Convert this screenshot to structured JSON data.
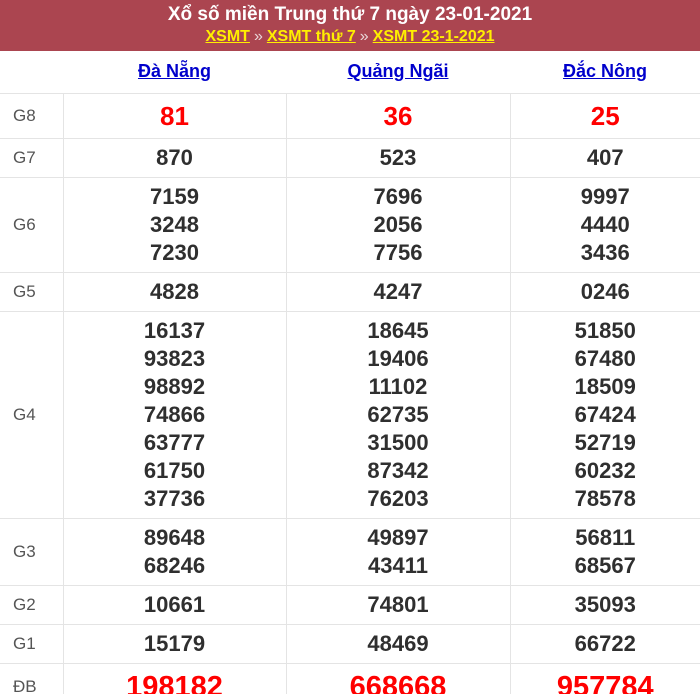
{
  "header": {
    "title": "Xổ số miền Trung thứ 7 ngày 23-01-2021",
    "separator": "»",
    "breadcrumb": [
      {
        "label": "XSMT"
      },
      {
        "label": "XSMT thứ 7"
      },
      {
        "label": "XSMT 23-1-2021"
      }
    ]
  },
  "table": {
    "provinces": [
      "Đà Nẵng",
      "Quảng Ngãi",
      "Đắc Nông"
    ],
    "rows": [
      {
        "label": "G8",
        "style": "red-large",
        "values": [
          [
            "81"
          ],
          [
            "36"
          ],
          [
            "25"
          ]
        ]
      },
      {
        "label": "G7",
        "values": [
          [
            "870"
          ],
          [
            "523"
          ],
          [
            "407"
          ]
        ]
      },
      {
        "label": "G6",
        "values": [
          [
            "7159",
            "3248",
            "7230"
          ],
          [
            "7696",
            "2056",
            "7756"
          ],
          [
            "9997",
            "4440",
            "3436"
          ]
        ]
      },
      {
        "label": "G5",
        "values": [
          [
            "4828"
          ],
          [
            "4247"
          ],
          [
            "0246"
          ]
        ]
      },
      {
        "label": "G4",
        "values": [
          [
            "16137",
            "93823",
            "98892",
            "74866",
            "63777",
            "61750",
            "37736"
          ],
          [
            "18645",
            "19406",
            "11102",
            "62735",
            "31500",
            "87342",
            "76203"
          ],
          [
            "51850",
            "67480",
            "18509",
            "67424",
            "52719",
            "60232",
            "78578"
          ]
        ]
      },
      {
        "label": "G3",
        "values": [
          [
            "89648",
            "68246"
          ],
          [
            "49897",
            "43411"
          ],
          [
            "56811",
            "68567"
          ]
        ]
      },
      {
        "label": "G2",
        "values": [
          [
            "10661"
          ],
          [
            "74801"
          ],
          [
            "35093"
          ]
        ]
      },
      {
        "label": "G1",
        "values": [
          [
            "15179"
          ],
          [
            "48469"
          ],
          [
            "66722"
          ]
        ]
      },
      {
        "label": "ĐB",
        "style": "red-xlarge",
        "values": [
          [
            "198182"
          ],
          [
            "668668"
          ],
          [
            "957784"
          ]
        ]
      }
    ]
  },
  "colors": {
    "banner_bg": "#ab4550",
    "banner_title": "#ffffff",
    "breadcrumb_link": "#ffef00",
    "breadcrumb_separator": "#e9d7d9",
    "province_link": "#0000cc",
    "number_dark": "#2f2f2f",
    "number_red": "#ff0000",
    "prize_label": "#555555",
    "table_border": "#e4e4e4"
  }
}
